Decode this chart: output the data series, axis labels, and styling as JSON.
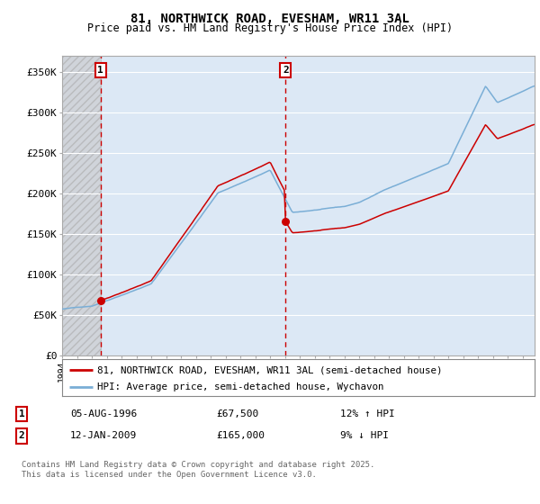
{
  "title": "81, NORTHWICK ROAD, EVESHAM, WR11 3AL",
  "subtitle": "Price paid vs. HM Land Registry's House Price Index (HPI)",
  "ylabel_ticks": [
    "£0",
    "£50K",
    "£100K",
    "£150K",
    "£200K",
    "£250K",
    "£300K",
    "£350K"
  ],
  "ytick_values": [
    0,
    50000,
    100000,
    150000,
    200000,
    250000,
    300000,
    350000
  ],
  "ylim": [
    0,
    370000
  ],
  "xlim_start": 1994.0,
  "xlim_end": 2025.8,
  "sale1_date": 1996.59,
  "sale1_price": 67500,
  "sale1_label": "1",
  "sale2_date": 2009.04,
  "sale2_price": 165000,
  "sale2_label": "2",
  "property_color": "#cc0000",
  "hpi_color": "#7aaed6",
  "annotation_box_color": "#cc0000",
  "vline_color": "#cc0000",
  "legend_label1": "81, NORTHWICK ROAD, EVESHAM, WR11 3AL (semi-detached house)",
  "legend_label2": "HPI: Average price, semi-detached house, Wychavon",
  "table_row1": [
    "1",
    "05-AUG-1996",
    "£67,500",
    "12% ↑ HPI"
  ],
  "table_row2": [
    "2",
    "12-JAN-2009",
    "£165,000",
    "9% ↓ HPI"
  ],
  "footer": "Contains HM Land Registry data © Crown copyright and database right 2025.\nThis data is licensed under the Open Government Licence v3.0.",
  "plot_bg_color": "#dce8f5",
  "grid_color": "#ffffff"
}
